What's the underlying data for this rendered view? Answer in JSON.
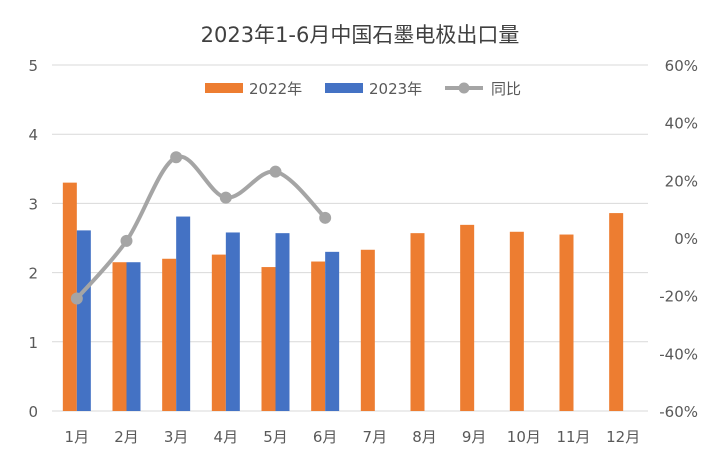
{
  "chart_data": {
    "type": "bar",
    "title": "2023年1-6月中国石墨电极出口量",
    "categories": [
      "1月",
      "2月",
      "3月",
      "4月",
      "5月",
      "6月",
      "7月",
      "8月",
      "9月",
      "10月",
      "11月",
      "12月"
    ],
    "series": [
      {
        "name": "2022年",
        "kind": "bar",
        "axis": "left",
        "color": "#ED7D31",
        "values": [
          3.3,
          2.15,
          2.2,
          2.26,
          2.08,
          2.16,
          2.33,
          2.57,
          2.69,
          2.59,
          2.55,
          2.86
        ]
      },
      {
        "name": "2023年",
        "kind": "bar",
        "axis": "left",
        "color": "#4472C4",
        "values": [
          2.61,
          2.15,
          2.81,
          2.58,
          2.57,
          2.3,
          null,
          null,
          null,
          null,
          null,
          null
        ]
      },
      {
        "name": "同比",
        "kind": "line",
        "axis": "right",
        "color": "#A5A5A5",
        "values": [
          -21,
          -1,
          28,
          14,
          23,
          7,
          null,
          null,
          null,
          null,
          null,
          null
        ]
      }
    ],
    "y_left": {
      "min": 0,
      "max": 5,
      "step": 1,
      "ticks": [
        "0",
        "1",
        "2",
        "3",
        "4",
        "5"
      ]
    },
    "y_right": {
      "min": -60,
      "max": 60,
      "step": 20,
      "ticks": [
        "-60%",
        "-40%",
        "-20%",
        "0%",
        "20%",
        "40%",
        "60%"
      ]
    },
    "grid": true,
    "legend_position": "top"
  }
}
